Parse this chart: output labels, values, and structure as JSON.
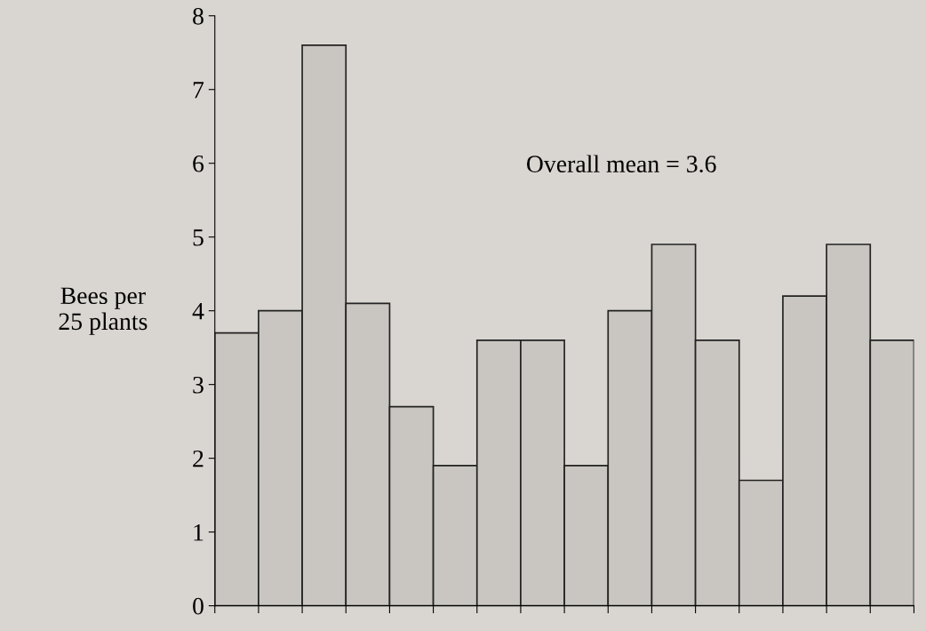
{
  "chart_data": {
    "type": "bar",
    "ylabel": "Bees per\n25 plants",
    "annotations": [
      "Overall mean = 3.6"
    ],
    "categories": [
      null,
      null,
      null,
      null,
      null,
      null,
      null,
      null,
      null,
      null,
      null,
      null,
      null,
      null,
      null,
      null
    ],
    "values": [
      3.7,
      4.0,
      7.6,
      4.1,
      2.7,
      1.9,
      3.6,
      3.6,
      1.9,
      4.0,
      4.9,
      3.6,
      1.7,
      4.2,
      4.9,
      3.6
    ],
    "color": "#c9c6c1",
    "ylim": [
      0,
      8
    ],
    "yticks": [
      0,
      1,
      2,
      3,
      4,
      5,
      6,
      7,
      8
    ],
    "grid": false,
    "legend": false
  }
}
